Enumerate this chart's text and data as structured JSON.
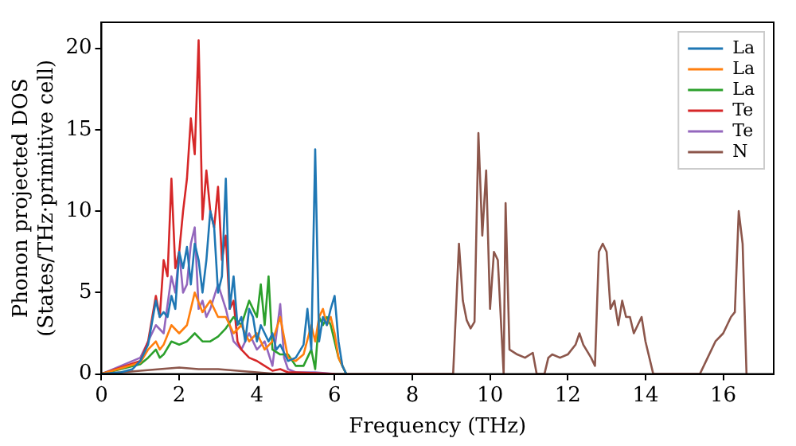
{
  "chart_data": {
    "type": "line",
    "xlabel": "Frequency (THz)",
    "ylabel": "Phonon projected DOS\n(States/THz·primitive cell)",
    "xlim": [
      0,
      17.3
    ],
    "ylim": [
      0,
      21.6
    ],
    "xticks": [
      0,
      2,
      4,
      6,
      8,
      10,
      12,
      14,
      16
    ],
    "yticks": [
      0,
      5,
      10,
      15,
      20
    ],
    "grid": false,
    "legend": "top right",
    "marker": "none",
    "line_style": "solid",
    "series": [
      {
        "name": "La",
        "color": "#1f77b4",
        "x": [
          0,
          0.5,
          0.8,
          1.0,
          1.2,
          1.4,
          1.5,
          1.6,
          1.7,
          1.8,
          1.9,
          2.0,
          2.1,
          2.2,
          2.3,
          2.4,
          2.5,
          2.6,
          2.7,
          2.8,
          2.9,
          3.0,
          3.1,
          3.2,
          3.3,
          3.4,
          3.5,
          3.6,
          3.7,
          3.8,
          3.9,
          4.0,
          4.1,
          4.2,
          4.3,
          4.4,
          4.5,
          4.6,
          4.8,
          5.0,
          5.2,
          5.3,
          5.4,
          5.5,
          5.6,
          5.7,
          5.8,
          5.9,
          6.0,
          6.1,
          6.2,
          6.3
        ],
        "values": [
          0,
          0.1,
          0.3,
          0.8,
          1.8,
          4.5,
          3.5,
          3.8,
          3.5,
          4.8,
          4,
          7.5,
          6.5,
          7.8,
          5.5,
          8,
          7,
          5,
          7,
          10,
          9,
          5,
          6,
          12,
          4,
          6,
          3,
          3.5,
          2,
          4,
          3.5,
          2,
          3,
          2.5,
          2,
          2.5,
          1.5,
          1.8,
          0.8,
          1,
          1.8,
          4,
          1.5,
          13.8,
          2,
          3.5,
          3,
          4,
          4.8,
          2,
          0.5,
          0
        ]
      },
      {
        "name": "La",
        "color": "#ff7f0e",
        "x": [
          0,
          1.0,
          1.2,
          1.4,
          1.5,
          1.6,
          1.8,
          2.0,
          2.2,
          2.4,
          2.6,
          2.8,
          3.0,
          3.2,
          3.4,
          3.6,
          3.8,
          4.0,
          4.2,
          4.4,
          4.6,
          4.8,
          5.0,
          5.2,
          5.4,
          5.5,
          5.6,
          5.7,
          5.8,
          5.9,
          6.0,
          6.1,
          6.3
        ],
        "values": [
          0,
          0.7,
          1.5,
          2,
          1.5,
          1.8,
          3,
          2.5,
          3,
          5,
          3.8,
          4.5,
          3.5,
          3.5,
          2.5,
          3,
          2,
          2.5,
          1.5,
          2,
          3.5,
          1,
          0.8,
          1.2,
          3,
          2,
          3.5,
          4,
          3,
          3.5,
          2.5,
          1,
          0
        ]
      },
      {
        "name": "La",
        "color": "#2ca02c",
        "x": [
          0,
          1.0,
          1.2,
          1.4,
          1.5,
          1.6,
          1.8,
          2.0,
          2.2,
          2.4,
          2.6,
          2.8,
          3.0,
          3.2,
          3.4,
          3.6,
          3.8,
          4.0,
          4.1,
          4.2,
          4.3,
          4.4,
          4.6,
          4.8,
          5.0,
          5.2,
          5.4,
          5.5,
          5.6,
          5.7,
          5.8,
          5.9,
          6.0,
          6.1,
          6.2,
          6.3
        ],
        "values": [
          0,
          0.6,
          1,
          1.5,
          1,
          1.2,
          2,
          1.8,
          2,
          2.5,
          2,
          2,
          2.3,
          2.8,
          3.5,
          3,
          4.5,
          3.5,
          5.5,
          3,
          6,
          1.5,
          1.2,
          1.2,
          0.5,
          0.5,
          1.5,
          0.3,
          3.5,
          3,
          3.5,
          3,
          2,
          1,
          0.5,
          0
        ]
      },
      {
        "name": "Te",
        "color": "#d62728",
        "x": [
          0,
          1.0,
          1.2,
          1.4,
          1.5,
          1.6,
          1.7,
          1.8,
          1.9,
          2.0,
          2.1,
          2.2,
          2.3,
          2.4,
          2.5,
          2.6,
          2.7,
          2.8,
          2.9,
          3.0,
          3.1,
          3.2,
          3.3,
          3.4,
          3.5,
          3.6,
          3.8,
          4.0,
          4.2,
          4.4,
          4.6,
          4.8,
          5.0,
          6.0
        ],
        "values": [
          0,
          0.8,
          2,
          4.8,
          3.5,
          7,
          6,
          12,
          6.5,
          7.5,
          10,
          12,
          15.7,
          13.5,
          20.5,
          9.5,
          12.5,
          10,
          9,
          11.5,
          7,
          8.5,
          4,
          4.5,
          2,
          1.5,
          1,
          0.8,
          0.5,
          0.2,
          0.3,
          0.1,
          0.1,
          0
        ]
      },
      {
        "name": "Te",
        "color": "#9467bd",
        "x": [
          0,
          1.0,
          1.2,
          1.4,
          1.6,
          1.8,
          1.9,
          2.0,
          2.1,
          2.2,
          2.3,
          2.4,
          2.5,
          2.6,
          2.7,
          2.8,
          3.0,
          3.2,
          3.4,
          3.6,
          3.8,
          4.0,
          4.2,
          4.4,
          4.6,
          4.7,
          4.8,
          5.0,
          5.5,
          6.0
        ],
        "values": [
          0,
          1,
          2,
          3,
          2.5,
          6,
          5,
          7.5,
          5,
          5.5,
          8,
          9,
          4,
          4.5,
          3.5,
          4,
          5.5,
          4,
          2,
          1.5,
          2.5,
          1.5,
          2,
          0.5,
          4.3,
          1,
          0.3,
          0.1,
          0.1,
          0
        ]
      },
      {
        "name": "N",
        "color": "#8c564b",
        "x": [
          0,
          1.0,
          1.5,
          2.0,
          2.5,
          3.0,
          3.5,
          4.0,
          4.5,
          9.05,
          9.2,
          9.3,
          9.4,
          9.5,
          9.6,
          9.7,
          9.8,
          9.9,
          10.0,
          10.1,
          10.2,
          10.35,
          10.4,
          10.5,
          10.7,
          10.9,
          11.1,
          11.2,
          11.4,
          11.5,
          11.6,
          11.8,
          12.0,
          12.2,
          12.3,
          12.4,
          12.6,
          12.7,
          12.8,
          12.9,
          13.0,
          13.1,
          13.2,
          13.3,
          13.4,
          13.5,
          13.6,
          13.7,
          13.8,
          13.9,
          14.0,
          14.1,
          14.2,
          15.4,
          15.6,
          15.8,
          16.0,
          16.2,
          16.3,
          16.4,
          16.5,
          16.6
        ],
        "values": [
          0,
          0.2,
          0.3,
          0.4,
          0.3,
          0.3,
          0.2,
          0.1,
          0,
          0,
          8,
          4.5,
          3.3,
          2.8,
          3.2,
          14.8,
          8.5,
          12.5,
          4,
          7.5,
          7,
          0,
          10.5,
          1.5,
          1.2,
          1,
          1.3,
          0,
          0,
          1,
          1.2,
          1,
          1.2,
          1.8,
          2.5,
          1.8,
          1,
          0.5,
          7.5,
          8,
          7.5,
          4,
          4.5,
          3,
          4.5,
          3.5,
          3.5,
          2.5,
          3,
          3.5,
          2,
          1,
          0,
          0,
          1,
          2,
          2.5,
          3.5,
          3.8,
          10,
          8,
          0
        ]
      }
    ]
  }
}
